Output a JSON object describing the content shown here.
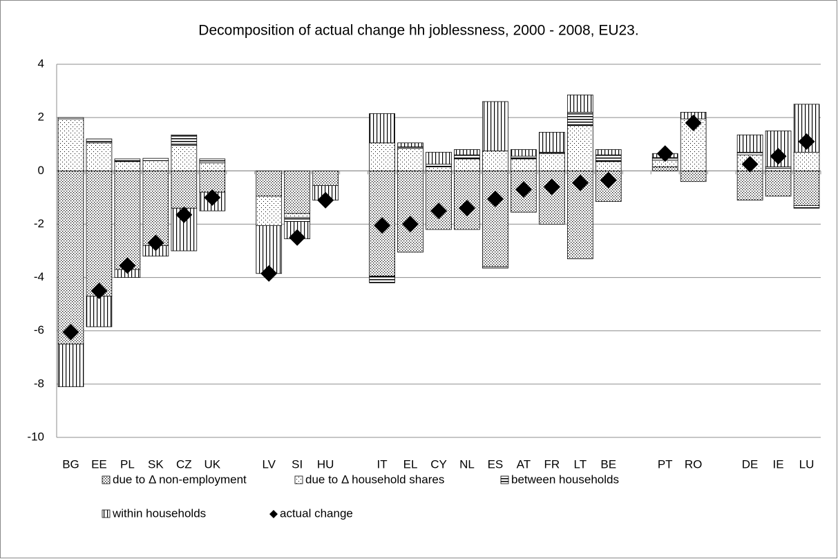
{
  "chart_data": {
    "type": "bar",
    "stacked": true,
    "title": "Decomposition of actual change hh joblessness, 2000 - 2008, EU23.",
    "categories": [
      "BG",
      "EE",
      "PL",
      "SK",
      "CZ",
      "UK",
      null,
      "LV",
      "SI",
      "HU",
      null,
      "IT",
      "EL",
      "CY",
      "NL",
      "ES",
      "AT",
      "FR",
      "LT",
      "BE",
      null,
      "PT",
      "RO",
      null,
      "DE",
      "IE",
      "LU"
    ],
    "series": [
      {
        "name": "due to Δ non-employment",
        "color": "#000000",
        "values": [
          -6.5,
          -4.7,
          -3.7,
          -2.8,
          -1.4,
          -0.8,
          null,
          -0.95,
          -1.6,
          -0.55,
          null,
          -3.95,
          -3.05,
          -2.2,
          -2.2,
          -3.6,
          -1.55,
          -2.0,
          -3.3,
          -1.15,
          null,
          0.15,
          -0.4,
          null,
          -1.1,
          -0.95,
          -1.3
        ]
      },
      {
        "name": "due to Δ household shares",
        "color": "#000000",
        "values": [
          1.95,
          1.05,
          0.35,
          0.38,
          0.95,
          0.3,
          null,
          -1.1,
          -0.15,
          0,
          null,
          1.05,
          0.85,
          0.15,
          0.45,
          0.75,
          0.45,
          0.65,
          1.7,
          0.35,
          null,
          0.25,
          1.95,
          null,
          0.6,
          0.1,
          0.7
        ]
      },
      {
        "name": "between households",
        "color": "#000000",
        "values": [
          0.05,
          0.15,
          0.1,
          0.09,
          0.4,
          0.15,
          null,
          0,
          -0.15,
          0,
          null,
          -0.25,
          0.05,
          0.1,
          0.15,
          -0.05,
          0.1,
          0.05,
          0.5,
          0.25,
          null,
          0.1,
          0,
          null,
          0.1,
          0.05,
          -0.1
        ]
      },
      {
        "name": "within households",
        "color": "#000000",
        "values": [
          -1.6,
          -1.15,
          -0.3,
          -0.4,
          -1.6,
          -0.7,
          null,
          -1.8,
          -0.65,
          -0.55,
          null,
          1.1,
          0.15,
          0.45,
          0.2,
          1.85,
          0.25,
          0.75,
          0.65,
          0.2,
          null,
          0.15,
          0.25,
          null,
          0.65,
          1.35,
          1.8
        ]
      },
      {
        "name": "actual change",
        "type": "scatter",
        "color": "#000000",
        "values": [
          -6.05,
          -4.5,
          -3.55,
          -2.7,
          -1.65,
          -1.0,
          null,
          -3.85,
          -2.5,
          -1.1,
          null,
          -2.05,
          -2.0,
          -1.5,
          -1.4,
          -1.05,
          -0.7,
          -0.6,
          -0.45,
          -0.35,
          null,
          0.65,
          1.8,
          null,
          0.25,
          0.55,
          1.1
        ]
      }
    ],
    "ylim": [
      -10,
      4
    ],
    "yticks": [
      -10,
      -8,
      -6,
      -4,
      -2,
      0,
      2,
      4
    ],
    "grid": true
  }
}
